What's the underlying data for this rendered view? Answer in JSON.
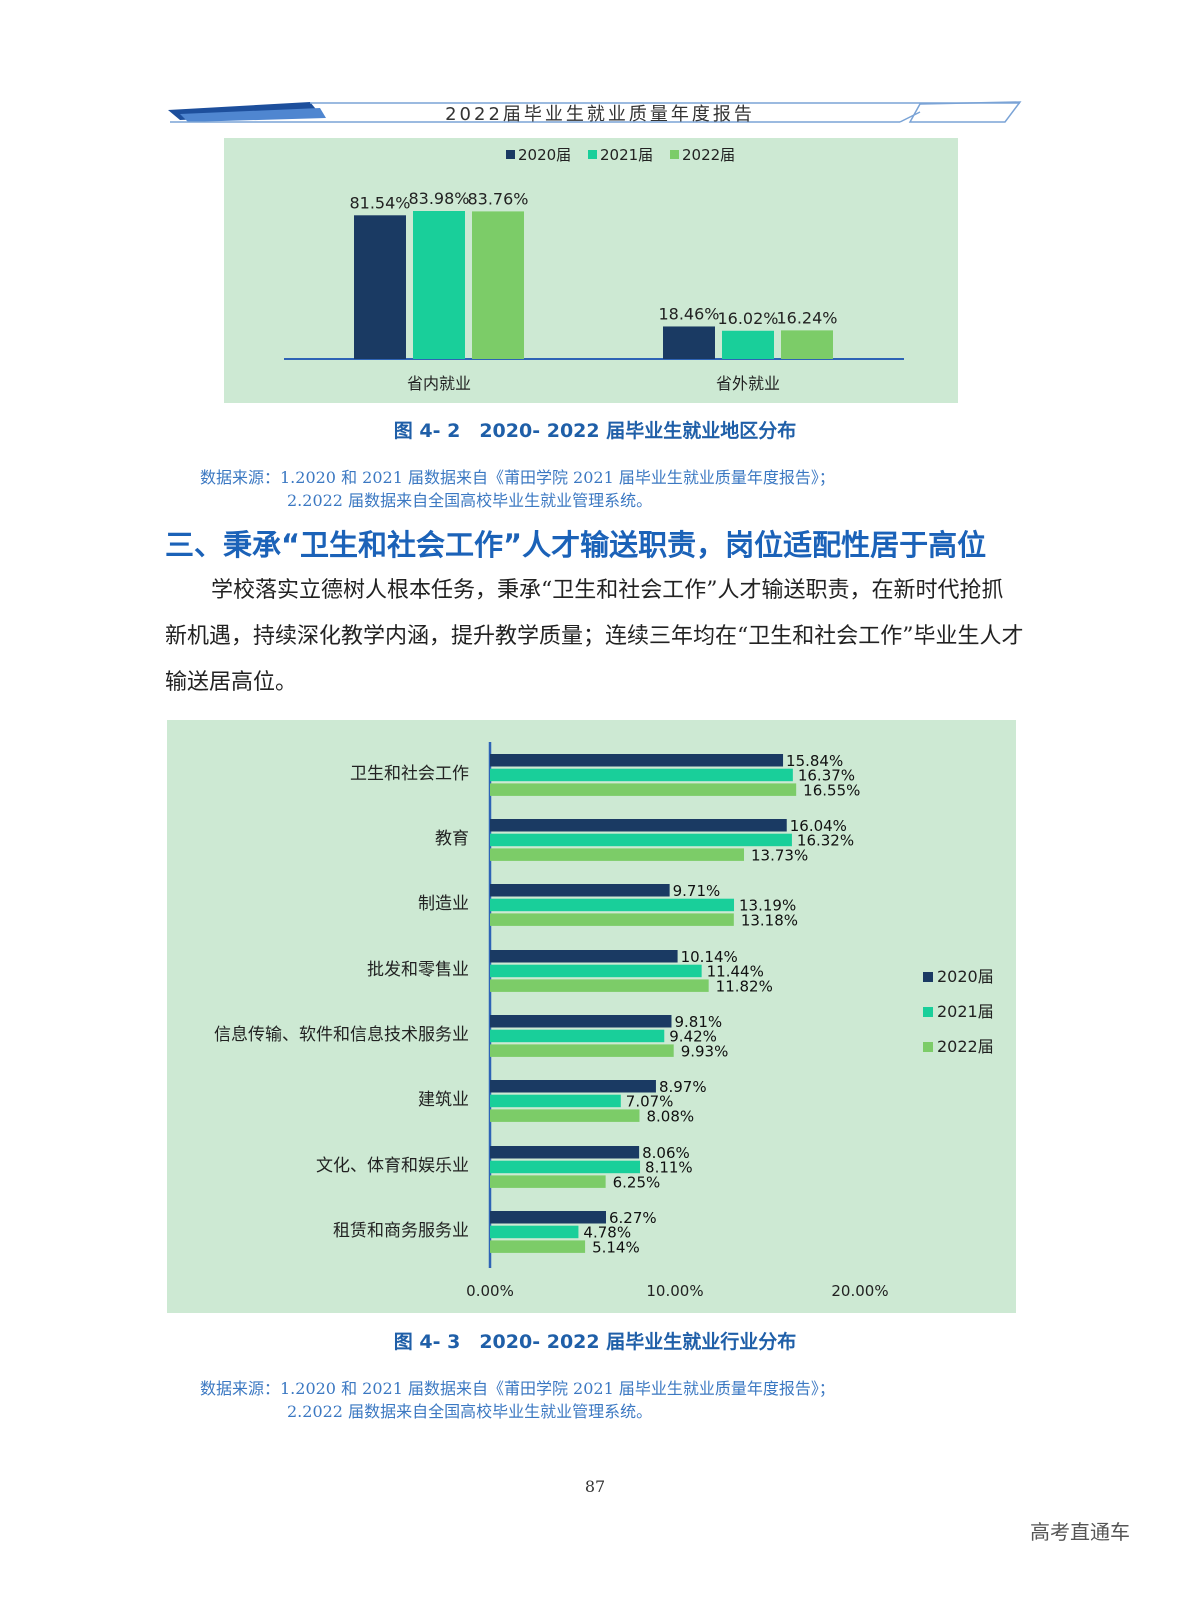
{
  "header": {
    "title": "2022届毕业生就业质量年度报告"
  },
  "figure1": {
    "caption": "图 4- 2　2020- 2022 届毕业生就业地区分布",
    "source_line1": "数据来源：1.2020 和 2021 届数据来自《莆田学院 2021 届毕业生就业质量年度报告》；",
    "source_line2": "2.2022 届数据来自全国高校毕业生就业管理系统。"
  },
  "section": {
    "title": "三、秉承“卫生和社会工作”人才输送职责，岗位适配性居于高位",
    "paragraph": "学校落实立德树人根本任务，秉承“卫生和社会工作”人才输送职责，在新时代抢抓新机遇，持续深化教学内涵，提升教学质量；连续三年均在“卫生和社会工作”毕业生人才输送居高位。"
  },
  "figure2": {
    "caption": "图 4- 3　2020- 2022 届毕业生就业行业分布",
    "source_line1": "数据来源：1.2020 和 2021 届数据来自《莆田学院 2021 届毕业生就业质量年度报告》；",
    "source_line2": "2.2022 届数据来自全国高校毕业生就业管理系统。"
  },
  "page_number": "87",
  "watermark": "高考直通车",
  "colors": {
    "y2020": "#1a3a63",
    "y2021": "#19cf9a",
    "y2022": "#7ccc68",
    "chart_bg": "#cde9d3",
    "caption": "#1f5fa8"
  },
  "chart_data": [
    {
      "type": "bar",
      "categories": [
        "省内就业",
        "省外就业"
      ],
      "series": [
        {
          "name": "2020届",
          "values": [
            81.54,
            18.46
          ],
          "labels": [
            "81.54%",
            "18.46%"
          ]
        },
        {
          "name": "2021届",
          "values": [
            83.98,
            16.02
          ],
          "labels": [
            "83.98%",
            "16.02%"
          ]
        },
        {
          "name": "2022届",
          "values": [
            83.76,
            16.24
          ],
          "labels": [
            "83.76%",
            "16.24%"
          ]
        }
      ],
      "legend": "top-center"
    },
    {
      "type": "bar",
      "orientation": "horizontal",
      "categories": [
        "卫生和社会工作",
        "教育",
        "制造业",
        "批发和零售业",
        "信息传输、软件和信息技术服务业",
        "建筑业",
        "文化、体育和娱乐业",
        "租赁和商务服务业"
      ],
      "series": [
        {
          "name": "2020届",
          "values": [
            15.84,
            16.04,
            9.71,
            10.14,
            9.81,
            8.97,
            8.06,
            6.27
          ],
          "labels": [
            "15.84%",
            "16.04%",
            "9.71%",
            "10.14%",
            "9.81%",
            "8.97%",
            "8.06%",
            "6.27%"
          ]
        },
        {
          "name": "2021届",
          "values": [
            16.37,
            16.32,
            13.19,
            11.44,
            9.42,
            7.07,
            8.11,
            4.78
          ],
          "labels": [
            "16.37%",
            "16.32%",
            "13.19%",
            "11.44%",
            "9.42%",
            "7.07%",
            "8.11%",
            "4.78%"
          ]
        },
        {
          "name": "2022届",
          "values": [
            16.55,
            13.73,
            13.18,
            11.82,
            9.93,
            8.08,
            6.25,
            5.14
          ],
          "labels": [
            "16.55%",
            "13.73%",
            "13.18%",
            "11.82%",
            "9.93%",
            "8.08%",
            "6.25%",
            "5.14%"
          ]
        }
      ],
      "xlim": [
        0,
        20
      ],
      "xticks": [
        "0.00%",
        "10.00%",
        "20.00%"
      ],
      "legend": "right"
    }
  ]
}
